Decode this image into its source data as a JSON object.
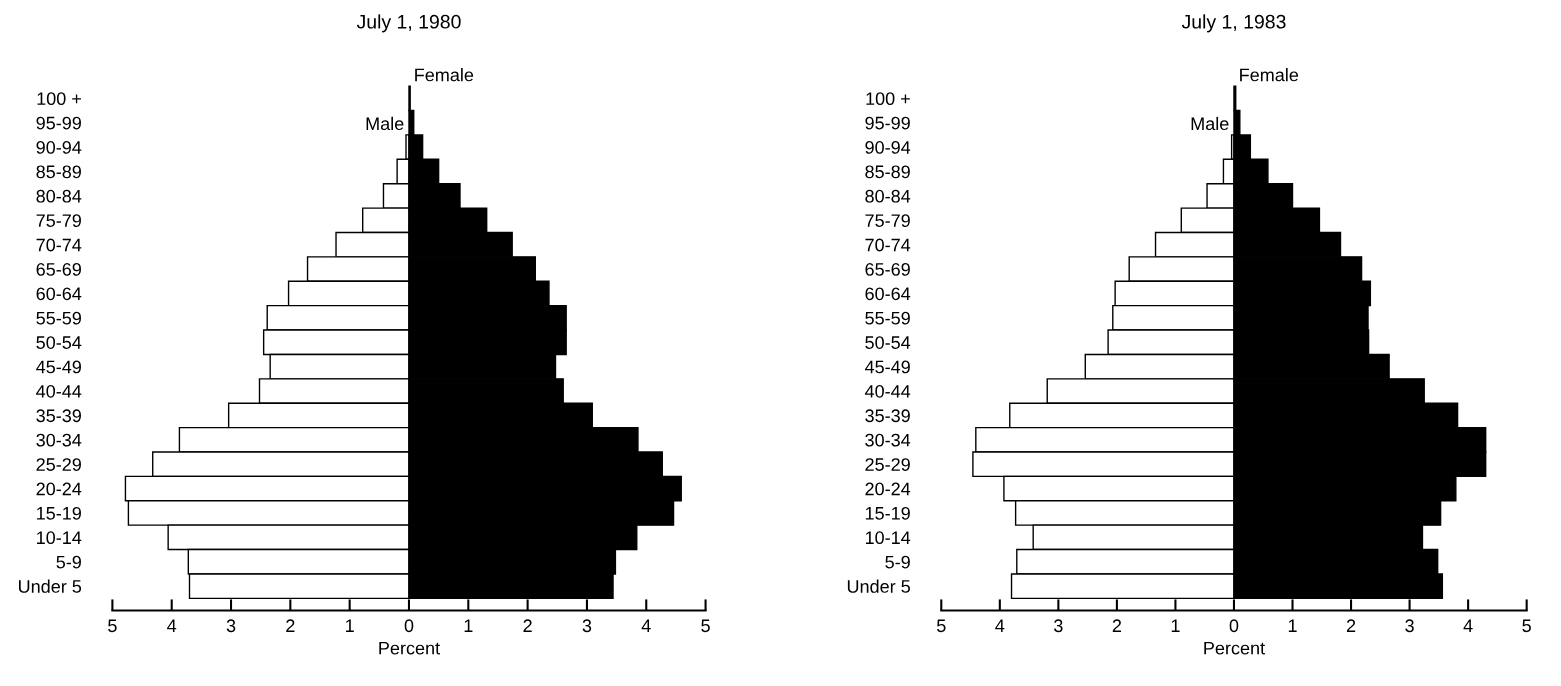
{
  "chart_data": [
    {
      "type": "bar",
      "orientation": "horizontal",
      "stacked": true,
      "title": "July 1, 1980",
      "xlabel": "Percent",
      "categories": [
        "100 +",
        "95-99",
        "90-94",
        "85-89",
        "80-84",
        "75-79",
        "70-74",
        "65-69",
        "60-64",
        "55-59",
        "50-54",
        "45-49",
        "40-44",
        "35-39",
        "30-34",
        "25-29",
        "20-24",
        "15-19",
        "10-14",
        "5-9",
        "Under 5"
      ],
      "series": [
        {
          "name": "Male",
          "color": "#ffffff",
          "values": [
            null,
            null,
            -0.05,
            -0.2,
            -0.43,
            -0.78,
            -1.23,
            -1.71,
            -2.03,
            -2.39,
            -2.45,
            -2.34,
            -2.52,
            -3.04,
            -3.87,
            -4.32,
            -4.78,
            -4.73,
            -4.06,
            -3.72,
            -3.7
          ]
        },
        {
          "name": "Female",
          "color": "#000000",
          "values": [
            0.02,
            0.08,
            0.23,
            0.5,
            0.86,
            1.31,
            1.74,
            2.13,
            2.36,
            2.65,
            2.65,
            2.47,
            2.6,
            3.09,
            3.86,
            4.27,
            4.59,
            4.46,
            3.84,
            3.48,
            3.44
          ]
        }
      ],
      "xlim": [
        -5,
        5
      ],
      "xticks": [
        {
          "value": -5,
          "label": "5"
        },
        {
          "value": -4,
          "label": "4"
        },
        {
          "value": -3,
          "label": "3"
        },
        {
          "value": -2,
          "label": "2"
        },
        {
          "value": -1,
          "label": "1"
        },
        0,
        1,
        2,
        3,
        4,
        5
      ]
    },
    {
      "type": "bar",
      "orientation": "horizontal",
      "stacked": true,
      "title": "July 1, 1983",
      "xlabel": "Percent",
      "categories": [
        "100 +",
        "95-99",
        "90-94",
        "85-89",
        "80-84",
        "75-79",
        "70-74",
        "65-69",
        "60-64",
        "55-59",
        "50-54",
        "45-49",
        "40-44",
        "35-39",
        "30-34",
        "25-29",
        "20-24",
        "15-19",
        "10-14",
        "5-9",
        "Under 5"
      ],
      "series": [
        {
          "name": "Male",
          "color": "#ffffff",
          "values": [
            null,
            null,
            -0.04,
            -0.18,
            -0.46,
            -0.9,
            -1.34,
            -1.79,
            -2.03,
            -2.07,
            -2.15,
            -2.54,
            -3.19,
            -3.83,
            -4.41,
            -4.46,
            -3.93,
            -3.73,
            -3.43,
            -3.71,
            -3.8
          ]
        },
        {
          "name": "Female",
          "color": "#000000",
          "values": [
            0.03,
            0.1,
            0.28,
            0.58,
            1.0,
            1.46,
            1.82,
            2.18,
            2.33,
            2.29,
            2.3,
            2.65,
            3.25,
            3.82,
            4.3,
            4.3,
            3.79,
            3.53,
            3.22,
            3.48,
            3.56
          ]
        }
      ],
      "xlim": [
        -5,
        5
      ],
      "xticks": [
        {
          "value": -5,
          "label": "5"
        },
        {
          "value": -4,
          "label": "4"
        },
        {
          "value": -3,
          "label": "3"
        },
        {
          "value": -2,
          "label": "2"
        },
        {
          "value": -1,
          "label": "1"
        },
        0,
        1,
        2,
        3,
        4,
        5
      ]
    }
  ]
}
